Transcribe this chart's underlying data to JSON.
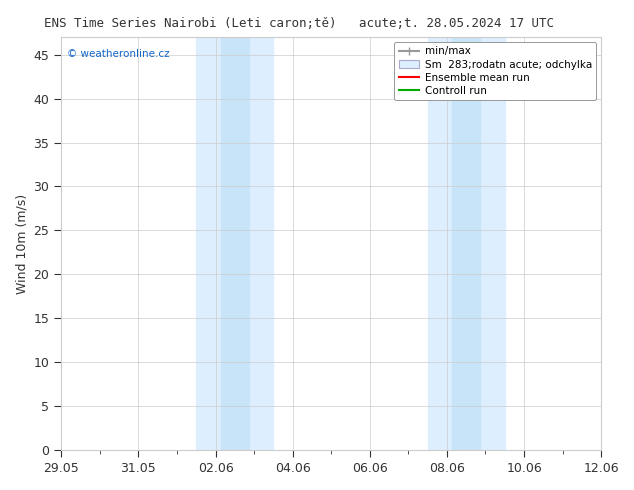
{
  "title_left": "ENS Time Series Nairobi (Leti caron;tě)",
  "title_right": "acute;t. 28.05.2024 17 UTC",
  "ylabel": "Wind 10m (m/s)",
  "watermark": "© weatheronline.cz",
  "xmin_days": 0,
  "xmax_days": 14,
  "ymin": 0,
  "ymax": 47,
  "yticks": [
    0,
    5,
    10,
    15,
    20,
    25,
    30,
    35,
    40,
    45
  ],
  "xtick_labels": [
    "29.05",
    "31.05",
    "02.06",
    "04.06",
    "06.06",
    "08.06",
    "10.06",
    "12.06"
  ],
  "xtick_positions": [
    0,
    2,
    4,
    6,
    8,
    10,
    12,
    14
  ],
  "shaded_bands": [
    {
      "xstart": 3.5,
      "xend": 5.5,
      "color": "#ddeeff"
    },
    {
      "xstart": 9.5,
      "xend": 11.5,
      "color": "#ddeeff"
    }
  ],
  "band_inner_color": "#c8e4f8",
  "legend_entries": [
    {
      "label": "min/max",
      "color": "#aaaaaa",
      "type": "hline"
    },
    {
      "label": "Sm  283;rodatn acute; odchylka",
      "color": "#ccddee",
      "type": "box"
    },
    {
      "label": "Ensemble mean run",
      "color": "#ff0000",
      "type": "line"
    },
    {
      "label": "Controll run",
      "color": "#00aa00",
      "type": "line"
    }
  ],
  "background_color": "#ffffff",
  "plot_background": "#ffffff",
  "grid_color": "#cccccc",
  "tick_color": "#333333",
  "title_color": "#333333",
  "font_size": 9,
  "title_font_size": 9
}
